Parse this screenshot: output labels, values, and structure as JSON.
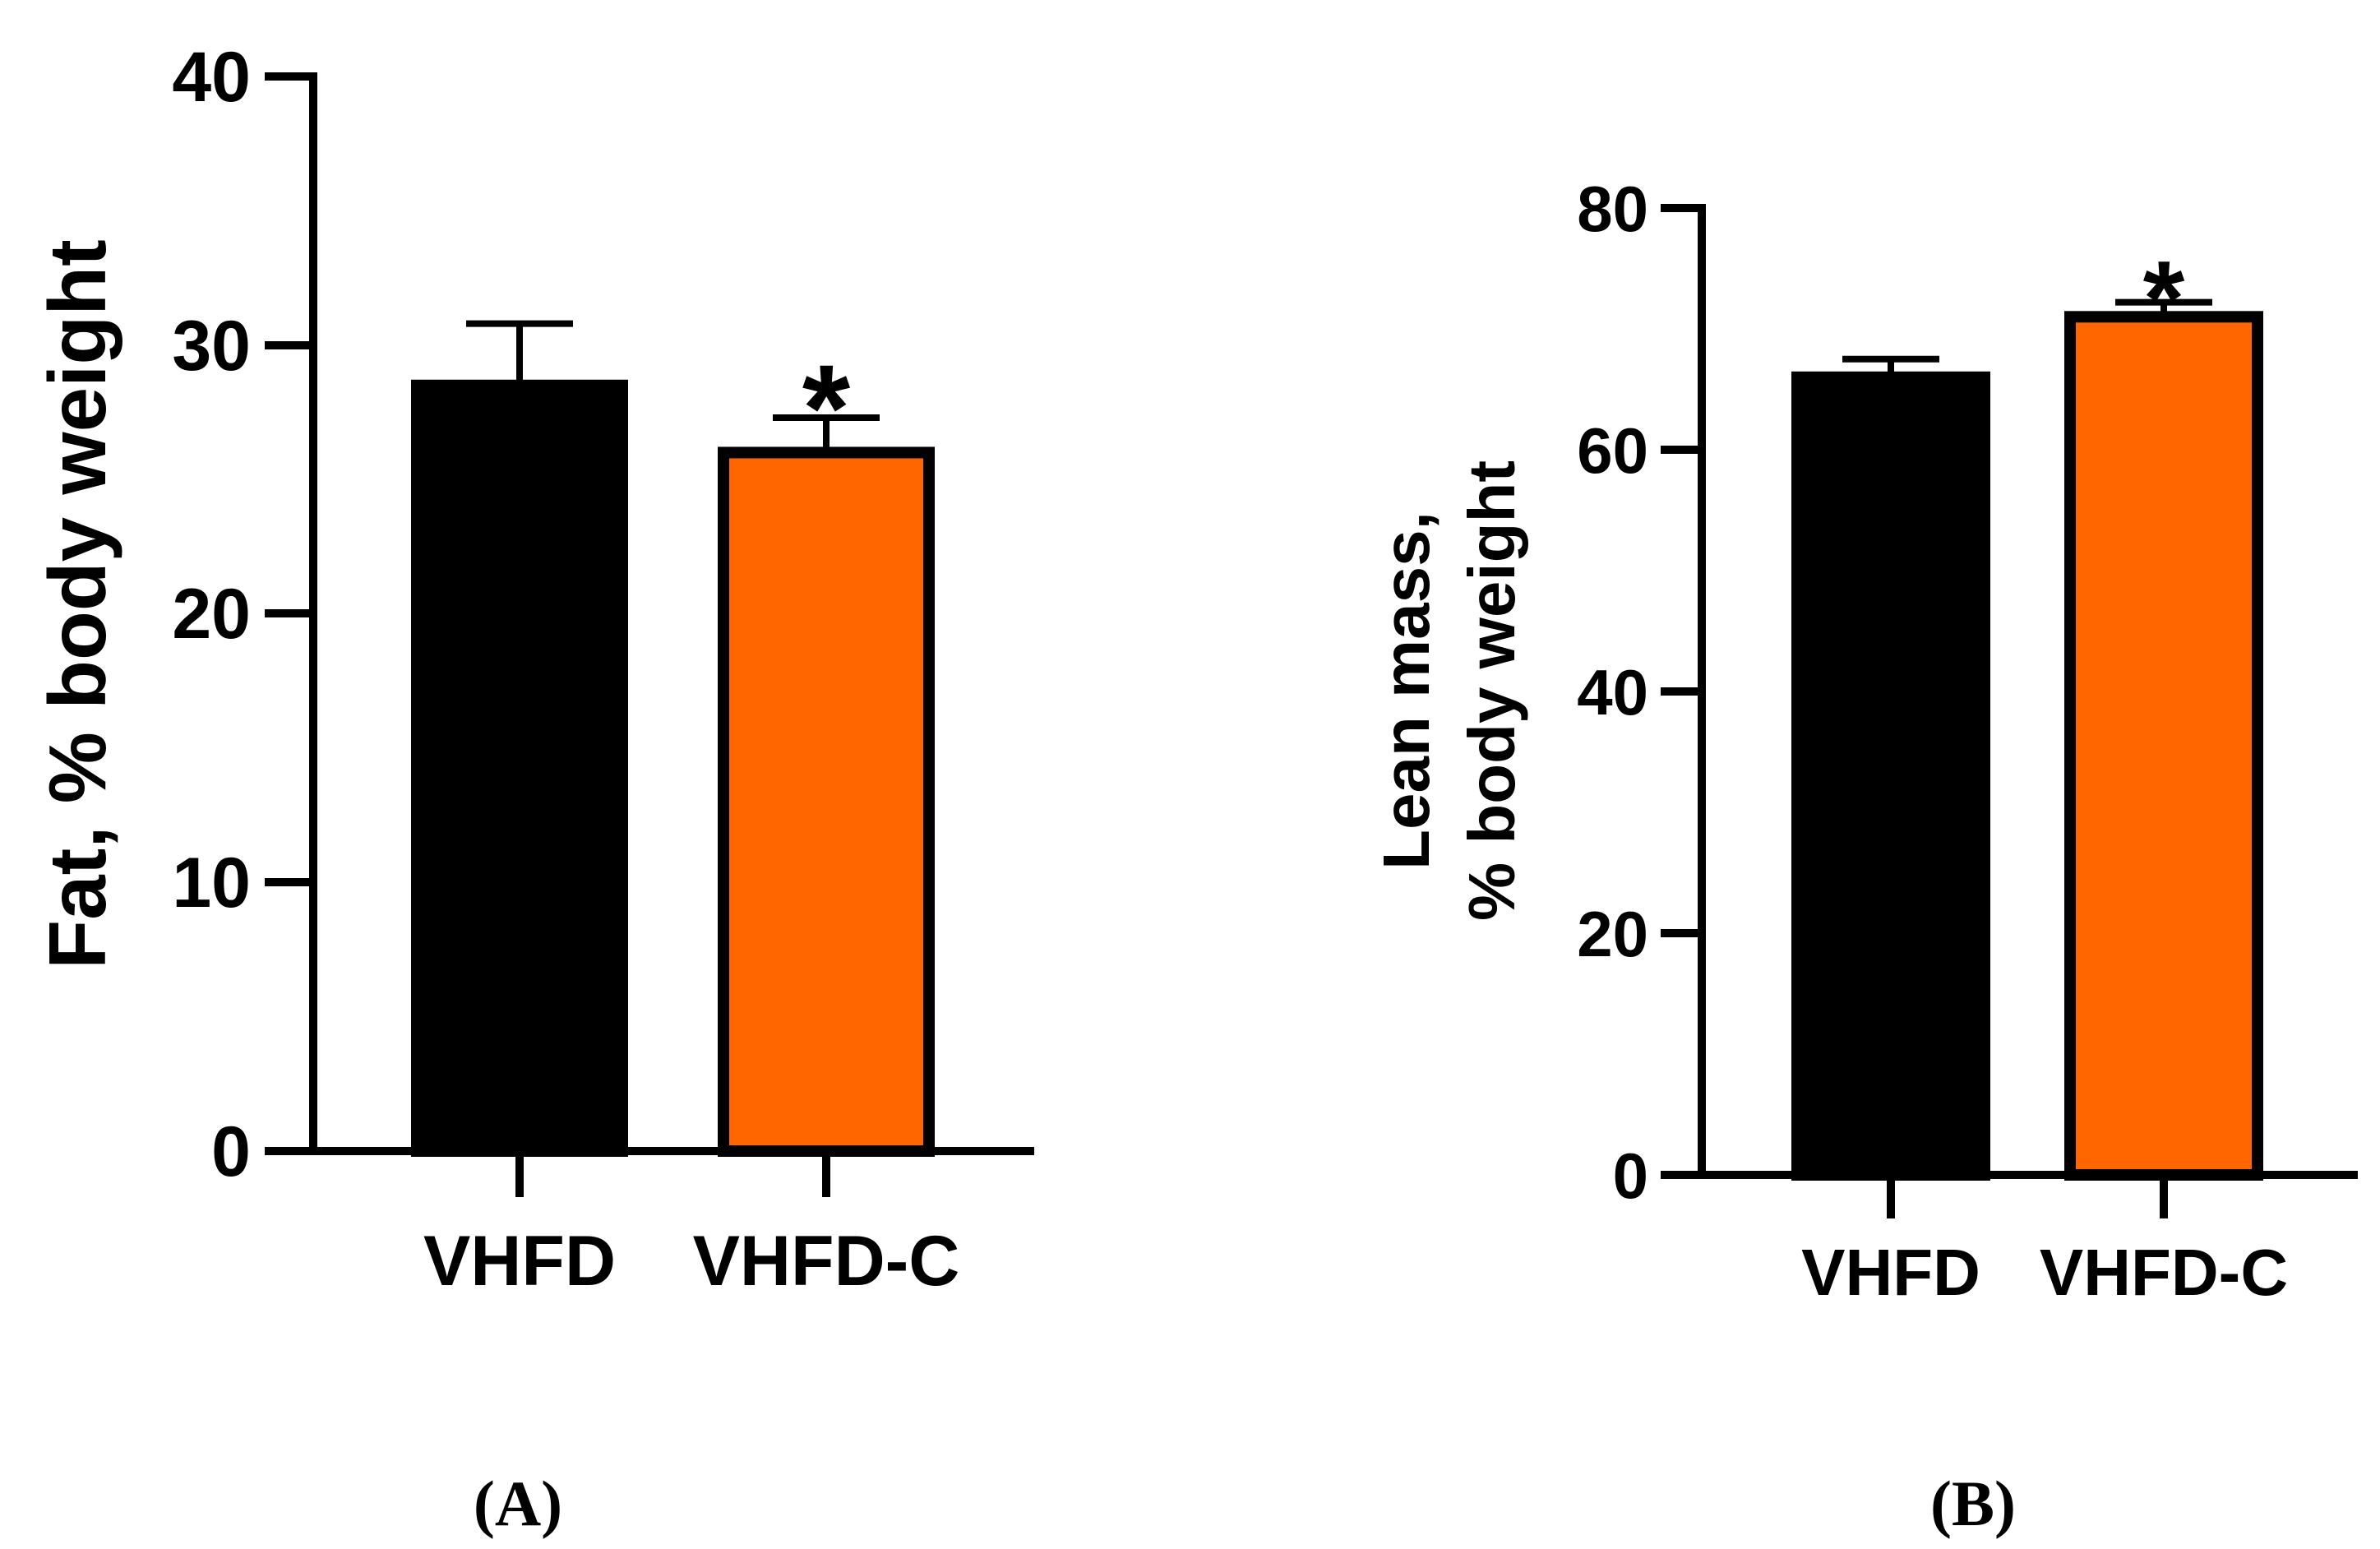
{
  "colors": {
    "vhfd": "#000000",
    "vhfd_c": "#ff6600",
    "outline": "#000000",
    "background": "#ffffff"
  },
  "chart_data": [
    {
      "type": "bar",
      "panel_label": "(A)",
      "ylabel": "Fat, % body weight",
      "xlabel": "",
      "ylim": [
        0,
        40
      ],
      "yticks": [
        0,
        10,
        20,
        30,
        40
      ],
      "ytick_labels": [
        "0",
        "10",
        "20",
        "30",
        "40"
      ],
      "categories": [
        "VHFD",
        "VHFD-C"
      ],
      "values": [
        28.5,
        26.0
      ],
      "errors": [
        2.3,
        1.3
      ],
      "significance": [
        "",
        "*"
      ]
    },
    {
      "type": "bar",
      "panel_label": "(B)",
      "ylabel_lines": [
        "Lean mass,",
        "% body weight"
      ],
      "xlabel": "",
      "ylim": [
        0,
        80
      ],
      "yticks": [
        0,
        20,
        40,
        60,
        80
      ],
      "ytick_labels": [
        "0",
        "20",
        "40",
        "60",
        "80"
      ],
      "categories": [
        "VHFD",
        "VHFD-C"
      ],
      "values": [
        66.0,
        71.0
      ],
      "errors": [
        1.5,
        1.2
      ],
      "significance": [
        "",
        "*"
      ]
    }
  ]
}
